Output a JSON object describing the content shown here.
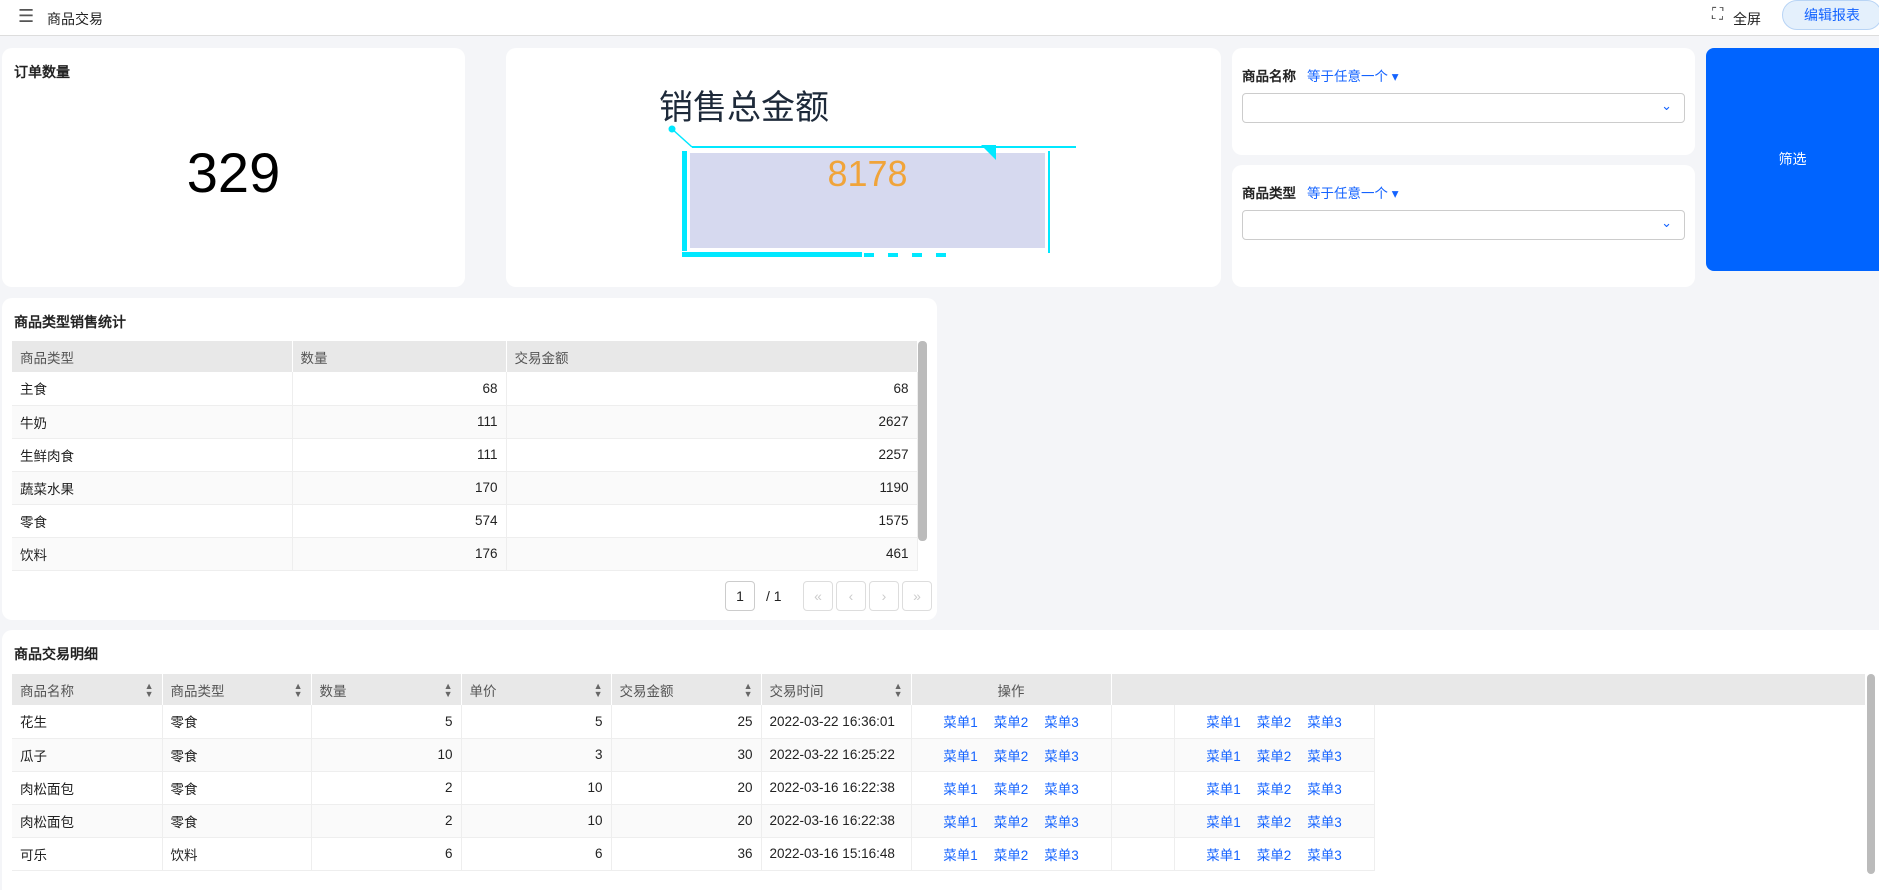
{
  "header": {
    "menu_icon": "menu-fold-icon",
    "title": "商品交易",
    "fullscreen_label": "全屏",
    "fullscreen_icon": "fullscreen-icon",
    "edit_label": "编辑报表"
  },
  "order_count": {
    "title": "订单数量",
    "value": "329"
  },
  "sales_total": {
    "title": "销售总金额",
    "value": "8178",
    "value_color": "#f0a43a",
    "frame_color": "#00e8ff"
  },
  "filters": [
    {
      "label": "商品名称",
      "operator": "等于任意一个",
      "value": ""
    },
    {
      "label": "商品类型",
      "operator": "等于任意一个",
      "value": ""
    }
  ],
  "filter_button": {
    "label": "筛选",
    "color": "#0064ff"
  },
  "type_stats": {
    "title": "商品类型销售统计",
    "columns": [
      "商品类型",
      "数量",
      "交易金额"
    ],
    "rows": [
      [
        "主食",
        "68",
        "68"
      ],
      [
        "牛奶",
        "111",
        "2627"
      ],
      [
        "生鲜肉食",
        "111",
        "2257"
      ],
      [
        "蔬菜水果",
        "170",
        "1190"
      ],
      [
        "零食",
        "574",
        "1575"
      ],
      [
        "饮料",
        "176",
        "461"
      ]
    ],
    "pagination": {
      "current": "1",
      "total": "/ 1"
    }
  },
  "detail": {
    "title": "商品交易明细",
    "columns": [
      "商品名称",
      "商品类型",
      "数量",
      "单价",
      "交易金额",
      "交易时间",
      "操作"
    ],
    "menus": [
      "菜单1",
      "菜单2",
      "菜单3"
    ],
    "rows": [
      [
        "花生",
        "零食",
        "5",
        "5",
        "25",
        "2022-03-22 16:36:01"
      ],
      [
        "瓜子",
        "零食",
        "10",
        "3",
        "30",
        "2022-03-22 16:25:22"
      ],
      [
        "肉松面包",
        "零食",
        "2",
        "10",
        "20",
        "2022-03-16 16:22:38"
      ],
      [
        "肉松面包",
        "零食",
        "2",
        "10",
        "20",
        "2022-03-16 16:22:38"
      ],
      [
        "可乐",
        "饮料",
        "6",
        "6",
        "36",
        "2022-03-16 15:16:48"
      ]
    ]
  }
}
